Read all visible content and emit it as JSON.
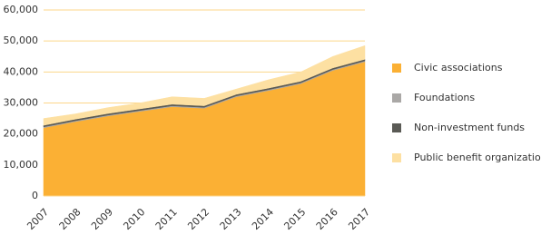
{
  "chart_data": {
    "type": "stacked-area",
    "categories": [
      "2007",
      "2008",
      "2009",
      "2010",
      "2011",
      "2012",
      "2013",
      "2014",
      "2015",
      "2016",
      "2017"
    ],
    "series": [
      {
        "name": "Civic associations",
        "color": "#fbb034",
        "values": [
          22000,
          24000,
          25800,
          27300,
          28800,
          28300,
          32000,
          34000,
          36200,
          40500,
          43300
        ]
      },
      {
        "name": "Foundations",
        "color": "#aaa8a6",
        "values": [
          300,
          300,
          300,
          300,
          300,
          300,
          300,
          300,
          300,
          300,
          300
        ]
      },
      {
        "name": "Non-investment funds",
        "color": "#5a5a55",
        "values": [
          500,
          500,
          500,
          500,
          500,
          500,
          500,
          500,
          500,
          500,
          500
        ]
      },
      {
        "name": "Public benefit organizations",
        "color": "#fde0a2",
        "values": [
          2200,
          1700,
          1900,
          1900,
          2400,
          2400,
          1700,
          2700,
          3000,
          3700,
          4400
        ]
      }
    ],
    "ylim": [
      0,
      60000
    ],
    "yticks": [
      0,
      {
        "value": 10000,
        "label": "10,000"
      },
      {
        "value": 20000,
        "label": "20,000"
      },
      {
        "value": 30000,
        "label": "30,000"
      },
      {
        "value": 40000,
        "label": "40,000"
      },
      {
        "value": 50000,
        "label": "50,000"
      },
      {
        "value": 60000,
        "label": "60,000"
      }
    ],
    "grid": true
  }
}
